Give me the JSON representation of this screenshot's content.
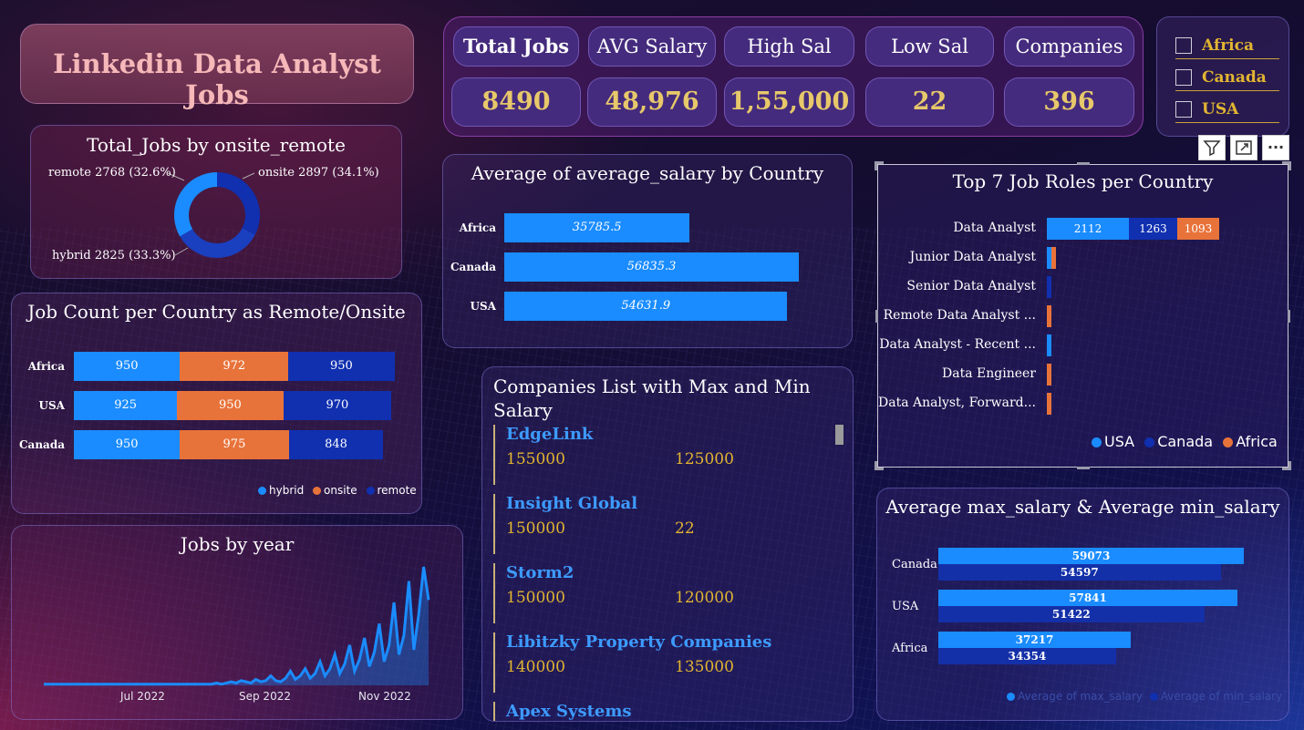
{
  "app": {
    "title": "Linkedin Data Analyst Jobs"
  },
  "kpis": [
    {
      "label": "Total Jobs",
      "value": "8490"
    },
    {
      "label": "AVG Salary",
      "value": "48,976"
    },
    {
      "label": "High Sal",
      "value": "1,55,000"
    },
    {
      "label": "Low Sal",
      "value": "22"
    },
    {
      "label": "Companies",
      "value": "396"
    }
  ],
  "slicer": {
    "options": [
      {
        "label": "Africa",
        "checked": false
      },
      {
        "label": "Canada",
        "checked": false
      },
      {
        "label": "USA",
        "checked": false
      }
    ]
  },
  "toolbar": {
    "filter_icon": "filter-icon",
    "focus_icon": "focus-mode-icon",
    "more_icon": "more-options-icon",
    "more_label": "···"
  },
  "colors": {
    "blue": "#1a8cff",
    "orange": "#e8733a",
    "navy": "#1030b0",
    "gold": "#e2b531",
    "pink_title": "#f6b8b8"
  },
  "donut": {
    "title": "Total_Jobs by onsite_remote",
    "labels": {
      "remote": "remote 2768 (32.6%)",
      "onsite": "onsite 2897 (34.1%)",
      "hybrid": "hybrid 2825 (33.3%)"
    },
    "chart_data": {
      "type": "pie",
      "categories": [
        "remote",
        "onsite",
        "hybrid"
      ],
      "values": [
        2768,
        2897,
        2825
      ],
      "percent": [
        32.6,
        34.1,
        33.3
      ],
      "title": "Total_Jobs by onsite_remote"
    }
  },
  "job_count": {
    "title": "Job Count per Country as Remote/Onsite",
    "legend": [
      "hybrid",
      "onsite",
      "remote"
    ],
    "chart_data": {
      "type": "bar",
      "stacked": true,
      "categories": [
        "Africa",
        "USA",
        "Canada"
      ],
      "series": [
        {
          "name": "hybrid",
          "values": [
            950,
            925,
            950
          ]
        },
        {
          "name": "onsite",
          "values": [
            972,
            950,
            975
          ]
        },
        {
          "name": "remote",
          "values": [
            950,
            970,
            848
          ]
        }
      ],
      "title": "Job Count per Country as Remote/Onsite"
    }
  },
  "jobs_by_year": {
    "title": "Jobs by year",
    "x_ticks": [
      "Jul 2022",
      "Sep 2022",
      "Nov 2022"
    ],
    "chart_data": {
      "type": "area",
      "title": "Jobs by year",
      "x_ticks": [
        "Jul 2022",
        "Sep 2022",
        "Nov 2022"
      ],
      "note_values": "relative daily job counts, rising sharply in Nov 2022",
      "values": [
        1,
        1,
        1,
        1,
        1,
        1,
        1,
        1,
        1,
        1,
        1,
        1,
        1,
        1,
        1,
        1,
        1,
        1,
        1,
        1,
        1,
        1,
        1,
        1,
        1,
        1,
        1,
        1,
        1,
        1,
        1,
        1,
        1,
        1,
        1,
        2,
        1,
        2,
        3,
        2,
        4,
        3,
        2,
        5,
        3,
        4,
        8,
        4,
        3,
        6,
        12,
        5,
        8,
        14,
        6,
        10,
        20,
        8,
        14,
        26,
        10,
        18,
        34,
        12,
        22,
        40,
        16,
        28,
        52,
        20,
        34,
        70,
        26,
        42,
        88,
        30,
        60,
        100,
        72
      ]
    },
    "note": ""
  },
  "avg_country": {
    "title": "Average of average_salary by Country",
    "chart_data": {
      "type": "bar",
      "orientation": "horizontal",
      "categories": [
        "Africa",
        "Canada",
        "USA"
      ],
      "values": [
        35785.5,
        56835.3,
        54631.9
      ],
      "labels": [
        "35785.5",
        "56835.3",
        "54631.9"
      ],
      "title": "Average of average_salary by Country"
    }
  },
  "companies": {
    "title": "Companies List with Max and Min Salary",
    "items": [
      {
        "name": "EdgeLink",
        "max": "155000",
        "min": "125000"
      },
      {
        "name": "Insight Global",
        "max": "150000",
        "min": "22"
      },
      {
        "name": "Storm2",
        "max": "150000",
        "min": "120000"
      },
      {
        "name": "Libitzky Property Companies",
        "max": "140000",
        "min": "135000"
      },
      {
        "name": "Apex Systems",
        "max": "",
        "min": ""
      }
    ]
  },
  "top_roles": {
    "title": "Top 7 Job Roles per Country",
    "legend": [
      "USA",
      "Canada",
      "Africa"
    ],
    "chart_data": {
      "type": "bar",
      "orientation": "horizontal",
      "stacked": true,
      "categories": [
        "Data Analyst",
        "Junior Data Analyst",
        "Senior Data Analyst",
        "Remote Data Analyst ...",
        "Data Analyst - Recent ...",
        "Data Engineer",
        "Data Analyst, Forward..."
      ],
      "series": [
        {
          "name": "USA",
          "values": [
            2112,
            20,
            0,
            0,
            20,
            0,
            0
          ]
        },
        {
          "name": "Canada",
          "values": [
            1263,
            0,
            15,
            0,
            0,
            0,
            0
          ]
        },
        {
          "name": "Africa",
          "values": [
            1093,
            20,
            0,
            25,
            0,
            12,
            12
          ]
        }
      ],
      "labels": [
        "2112",
        "1263",
        "1093"
      ],
      "title": "Top 7 Job Roles per Country"
    }
  },
  "maxmin": {
    "title": "Average max_salary & Average min_salary",
    "legend": [
      "Average of max_salary",
      "Average of min_salary"
    ],
    "chart_data": {
      "type": "bar",
      "orientation": "horizontal",
      "categories": [
        "Canada",
        "USA",
        "Africa"
      ],
      "series": [
        {
          "name": "Average of max_salary",
          "values": [
            59073,
            57841,
            37217
          ]
        },
        {
          "name": "Average of min_salary",
          "values": [
            54597,
            51422,
            34354
          ]
        }
      ],
      "labels_max": [
        "59073",
        "57841",
        "37217"
      ],
      "labels_min": [
        "54597",
        "51422",
        "34354"
      ],
      "title": "Average max_salary & Average min_salary"
    }
  }
}
